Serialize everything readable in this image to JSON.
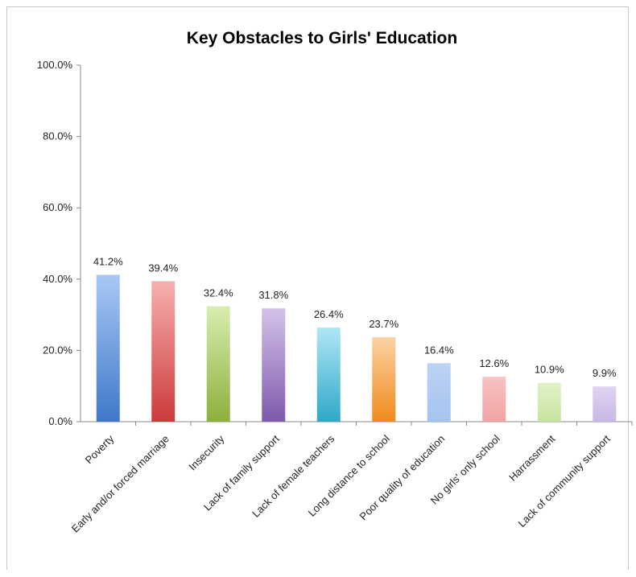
{
  "chart_data": {
    "type": "bar",
    "title": "Key Obstacles to Girls' Education",
    "xlabel": "",
    "ylabel": "",
    "ylim": [
      0,
      100
    ],
    "yticks": [
      "0.0%",
      "20.0%",
      "40.0%",
      "60.0%",
      "80.0%",
      "100.0%"
    ],
    "grid": false,
    "categories": [
      "Poverty",
      "Early and/or forced marriage",
      "Insecurity",
      "Lack of family support",
      "Lack of female teachers",
      "Long distance to school",
      "Poor quality of education",
      "No girls' only school",
      "Harrassment",
      "Lack of community support"
    ],
    "values": [
      41.2,
      39.4,
      32.4,
      31.8,
      26.4,
      23.7,
      16.4,
      12.6,
      10.9,
      9.9
    ],
    "data_labels": [
      "41.2%",
      "39.4%",
      "32.4%",
      "31.8%",
      "26.4%",
      "23.7%",
      "16.4%",
      "12.6%",
      "10.9%",
      "9.9%"
    ],
    "colors": [
      [
        "#a9c8f5",
        "#3f78c8"
      ],
      [
        "#f7b0b0",
        "#cc3a3a"
      ],
      [
        "#d8eeb0",
        "#8db03c"
      ],
      [
        "#d4c2ea",
        "#7e5aab"
      ],
      [
        "#b0e6f5",
        "#2fa8c8"
      ],
      [
        "#fcd2a2",
        "#f08a1e"
      ],
      [
        "#bcd3f5",
        "#a6c3f0"
      ],
      [
        "#f7c3c3",
        "#f0a3a3"
      ],
      [
        "#e2f2c8",
        "#c7e3a0"
      ],
      [
        "#e0d4f0",
        "#c9b6e6"
      ]
    ]
  }
}
